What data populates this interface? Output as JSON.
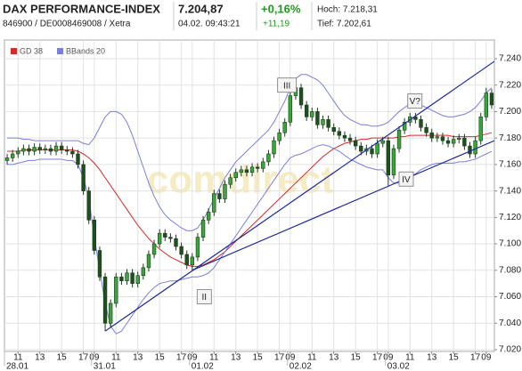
{
  "quote": {
    "name": "DAX PERFORMANCE-INDEX",
    "last": "7.204,87",
    "change_pct": "+0,16%",
    "high": "Hoch: 7.218,31",
    "ids": "846900 / DE0008469008 / Xetra",
    "time": "04.02. 09:43:21",
    "change": "+11,19",
    "low": "Tief: 7.202,61"
  },
  "chart_data": {
    "type": "candlestick",
    "watermark": "comdirect",
    "xlim": [
      0,
      90
    ],
    "xticks": [
      {
        "value": 2.5,
        "label": "11"
      },
      {
        "value": 6.5,
        "label": "13"
      },
      {
        "value": 10.5,
        "label": "15"
      },
      {
        "value": 14.5,
        "label": "17"
      },
      {
        "value": 16.5,
        "label": "09"
      },
      {
        "value": 20.5,
        "label": "11"
      },
      {
        "value": 24.5,
        "label": "13"
      },
      {
        "value": 28.5,
        "label": "15"
      },
      {
        "value": 32.5,
        "label": "17"
      },
      {
        "value": 34.5,
        "label": "09"
      },
      {
        "value": 38.5,
        "label": "11"
      },
      {
        "value": 42.5,
        "label": "13"
      },
      {
        "value": 46.5,
        "label": "15"
      },
      {
        "value": 50.5,
        "label": "17"
      },
      {
        "value": 52.5,
        "label": "09"
      },
      {
        "value": 56.5,
        "label": "11"
      },
      {
        "value": 60.5,
        "label": "13"
      },
      {
        "value": 64.5,
        "label": "15"
      },
      {
        "value": 68.5,
        "label": "17"
      },
      {
        "value": 70.5,
        "label": "09"
      },
      {
        "value": 74.5,
        "label": "11"
      },
      {
        "value": 78.5,
        "label": "13"
      },
      {
        "value": 82.5,
        "label": "15"
      },
      {
        "value": 86.5,
        "label": "17"
      },
      {
        "value": 88.5,
        "label": "09"
      }
    ],
    "xdates": [
      {
        "value": 0,
        "label": "28.01"
      },
      {
        "value": 16,
        "label": "31.01"
      },
      {
        "value": 34,
        "label": "01.02"
      },
      {
        "value": 52,
        "label": "02.02"
      },
      {
        "value": 70,
        "label": "03.02"
      }
    ],
    "ylim": [
      7018.65,
      7254.1
    ],
    "yticks": [
      {
        "value": 7240,
        "label": "7.240"
      },
      {
        "value": 7220,
        "label": "7.220"
      },
      {
        "value": 7200,
        "label": "7.200"
      },
      {
        "value": 7180,
        "label": "7.180"
      },
      {
        "value": 7160,
        "label": "7.160"
      },
      {
        "value": 7140,
        "label": "7.140"
      },
      {
        "value": 7120,
        "label": "7.120"
      },
      {
        "value": 7100,
        "label": "7.100"
      },
      {
        "value": 7080,
        "label": "7.080"
      },
      {
        "value": 7060,
        "label": "7.060"
      },
      {
        "value": 7040,
        "label": "7.040"
      },
      {
        "value": 7020,
        "label": "7.020"
      }
    ],
    "grid": true,
    "candles": {
      "up_color": "#3aa53a",
      "down_color": "#1f4f1f",
      "edge_color": "#1d3b1d",
      "open": [
        7163,
        7165,
        7168,
        7170,
        7172,
        7170,
        7173,
        7171,
        7172,
        7170,
        7174,
        7171,
        7170,
        7168,
        7160,
        7140,
        7118,
        7095,
        7075,
        7040,
        7055,
        7075,
        7072,
        7078,
        7070,
        7076,
        7082,
        7092,
        7100,
        7108,
        7105,
        7104,
        7098,
        7092,
        7084,
        7090,
        7105,
        7118,
        7124,
        7138,
        7134,
        7145,
        7150,
        7154,
        7156,
        7154,
        7158,
        7157,
        7162,
        7168,
        7178,
        7184,
        7192,
        7212,
        7218,
        7205,
        7196,
        7200,
        7190,
        7194,
        7188,
        7185,
        7182,
        7180,
        7178,
        7174,
        7170,
        7172,
        7168,
        7176,
        7178,
        7152,
        7172,
        7186,
        7192,
        7196,
        7194,
        7188,
        7184,
        7180,
        7181,
        7178,
        7176,
        7179,
        7180,
        7174,
        7168,
        7178,
        7196,
        7214
      ],
      "high": [
        7168,
        7171,
        7173,
        7175,
        7175,
        7176,
        7176,
        7175,
        7175,
        7177,
        7177,
        7174,
        7173,
        7171,
        7163,
        7143,
        7121,
        7098,
        7078,
        7058,
        7078,
        7078,
        7081,
        7081,
        7079,
        7085,
        7095,
        7103,
        7111,
        7111,
        7108,
        7107,
        7101,
        7095,
        7093,
        7108,
        7121,
        7127,
        7141,
        7141,
        7148,
        7153,
        7157,
        7159,
        7159,
        7161,
        7161,
        7165,
        7171,
        7181,
        7187,
        7195,
        7216,
        7225,
        7221,
        7208,
        7203,
        7203,
        7197,
        7197,
        7191,
        7188,
        7185,
        7183,
        7181,
        7177,
        7175,
        7175,
        7179,
        7181,
        7181,
        7175,
        7189,
        7195,
        7199,
        7199,
        7197,
        7191,
        7187,
        7184,
        7184,
        7181,
        7182,
        7183,
        7183,
        7177,
        7181,
        7199,
        7218,
        7217
      ],
      "low": [
        7160,
        7162,
        7165,
        7167,
        7167,
        7167,
        7168,
        7168,
        7167,
        7167,
        7168,
        7167,
        7165,
        7157,
        7137,
        7115,
        7092,
        7072,
        7034,
        7037,
        7052,
        7069,
        7069,
        7067,
        7067,
        7073,
        7079,
        7089,
        7097,
        7102,
        7101,
        7095,
        7089,
        7081,
        7080,
        7087,
        7102,
        7115,
        7121,
        7131,
        7131,
        7142,
        7147,
        7151,
        7151,
        7151,
        7154,
        7154,
        7159,
        7165,
        7175,
        7181,
        7189,
        7209,
        7202,
        7193,
        7193,
        7187,
        7187,
        7185,
        7182,
        7179,
        7177,
        7175,
        7171,
        7167,
        7167,
        7165,
        7165,
        7173,
        7144,
        7149,
        7169,
        7183,
        7189,
        7191,
        7185,
        7181,
        7177,
        7177,
        7175,
        7173,
        7173,
        7176,
        7171,
        7165,
        7165,
        7175,
        7193,
        7202
      ],
      "close": [
        7165,
        7168,
        7170,
        7172,
        7170,
        7173,
        7171,
        7172,
        7170,
        7174,
        7171,
        7170,
        7168,
        7160,
        7140,
        7118,
        7095,
        7075,
        7040,
        7055,
        7075,
        7072,
        7078,
        7070,
        7076,
        7082,
        7092,
        7100,
        7108,
        7105,
        7104,
        7098,
        7092,
        7084,
        7090,
        7105,
        7118,
        7124,
        7138,
        7134,
        7145,
        7150,
        7154,
        7156,
        7154,
        7158,
        7157,
        7162,
        7168,
        7178,
        7184,
        7192,
        7212,
        7218,
        7205,
        7196,
        7200,
        7190,
        7194,
        7188,
        7185,
        7182,
        7180,
        7178,
        7174,
        7170,
        7172,
        7168,
        7176,
        7178,
        7152,
        7172,
        7186,
        7192,
        7196,
        7194,
        7188,
        7184,
        7180,
        7181,
        7178,
        7176,
        7179,
        7180,
        7174,
        7168,
        7178,
        7196,
        7214,
        7205
      ]
    },
    "series": [
      {
        "name": "GD 38",
        "color": "#d42a2a",
        "values": [
          7170,
          7170,
          7170,
          7171,
          7171,
          7171,
          7171,
          7171,
          7171,
          7171,
          7171,
          7171,
          7171,
          7170,
          7168,
          7165,
          7161,
          7156,
          7150,
          7144,
          7138,
          7132,
          7126,
          7120,
          7114,
          7109,
          7104,
          7100,
          7096,
          7093,
          7090,
          7088,
          7086,
          7084,
          7083,
          7083,
          7084,
          7086,
          7088,
          7091,
          7094,
          7098,
          7102,
          7106,
          7110,
          7114,
          7118,
          7122,
          7126,
          7130,
          7134,
          7138,
          7142,
          7146,
          7150,
          7154,
          7158,
          7162,
          7166,
          7169,
          7172,
          7174,
          7176,
          7177,
          7178,
          7179,
          7179,
          7180,
          7180,
          7180,
          7180,
          7180,
          7181,
          7181,
          7182,
          7182,
          7182,
          7182,
          7182,
          7182,
          7182,
          7182,
          7181,
          7181,
          7181,
          7181,
          7181,
          7182,
          7183,
          7184
        ]
      },
      {
        "name": "BBands 20",
        "color": "#7b7fdc",
        "upper": [
          7180,
          7180,
          7180,
          7179,
          7179,
          7178,
          7178,
          7178,
          7178,
          7178,
          7178,
          7178,
          7178,
          7178,
          7176,
          7175,
          7180,
          7188,
          7196,
          7200,
          7200,
          7198,
          7192,
          7182,
          7170,
          7158,
          7146,
          7136,
          7128,
          7122,
          7118,
          7115,
          7112,
          7110,
          7110,
          7112,
          7118,
          7126,
          7134,
          7142,
          7150,
          7156,
          7162,
          7166,
          7170,
          7174,
          7178,
          7182,
          7186,
          7192,
          7200,
          7208,
          7218,
          7225,
          7228,
          7228,
          7226,
          7224,
          7220,
          7214,
          7208,
          7202,
          7197,
          7194,
          7192,
          7190,
          7190,
          7189,
          7189,
          7190,
          7192,
          7196,
          7200,
          7203,
          7206,
          7206,
          7205,
          7203,
          7201,
          7199,
          7197,
          7196,
          7196,
          7197,
          7198,
          7200,
          7203,
          7208,
          7214,
          7218
        ],
        "lower": [
          7160,
          7160,
          7161,
          7162,
          7163,
          7163,
          7164,
          7164,
          7164,
          7164,
          7164,
          7163,
          7163,
          7160,
          7150,
          7135,
          7105,
          7080,
          7055,
          7038,
          7032,
          7034,
          7040,
          7046,
          7052,
          7058,
          7063,
          7067,
          7070,
          7071,
          7072,
          7072,
          7073,
          7074,
          7075,
          7075,
          7076,
          7078,
          7082,
          7088,
          7094,
          7100,
          7106,
          7112,
          7118,
          7124,
          7130,
          7136,
          7142,
          7148,
          7154,
          7160,
          7165,
          7167,
          7168,
          7170,
          7172,
          7174,
          7175,
          7174,
          7172,
          7170,
          7167,
          7164,
          7162,
          7160,
          7158,
          7157,
          7156,
          7156,
          7150,
          7146,
          7146,
          7148,
          7150,
          7153,
          7156,
          7158,
          7160,
          7161,
          7161,
          7161,
          7161,
          7162,
          7162,
          7163,
          7164,
          7166,
          7168,
          7170
        ]
      }
    ],
    "trendlines": [
      {
        "color": "#1c2a9c",
        "x": [
          18.5,
          90
        ],
        "y": [
          7034,
          7238
        ]
      },
      {
        "color": "#1c2a9c",
        "x": [
          34.5,
          90
        ],
        "y": [
          7080,
          7178
        ]
      }
    ],
    "annotations": [
      {
        "text": "III",
        "x": 51.9,
        "y": 7220
      },
      {
        "text": "V?",
        "x": 75.4,
        "y": 7208
      },
      {
        "text": "II",
        "x": 36.7,
        "y": 7060
      },
      {
        "text": "IV",
        "x": 73.8,
        "y": 7149
      }
    ]
  }
}
